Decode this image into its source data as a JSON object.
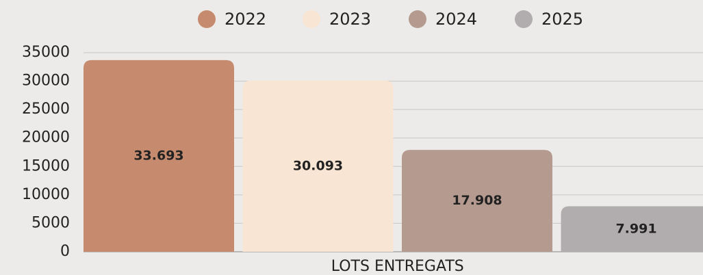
{
  "chart_data": {
    "type": "bar",
    "categories": [
      "LOTS ENTREGATS"
    ],
    "series": [
      {
        "name": "2022",
        "color": "#c68b6e",
        "values": [
          33693
        ],
        "value_labels": [
          "33.693"
        ]
      },
      {
        "name": "2023",
        "color": "#f9e5d3",
        "values": [
          30093
        ],
        "value_labels": [
          "30.093"
        ]
      },
      {
        "name": "2024",
        "color": "#b59a8f",
        "values": [
          17908
        ],
        "value_labels": [
          "17.908"
        ]
      },
      {
        "name": "2025",
        "color": "#b1acae",
        "values": [
          7991
        ],
        "value_labels": [
          "7.991"
        ]
      }
    ],
    "ylim": [
      0,
      35000
    ],
    "yticks": [
      0,
      5000,
      10000,
      15000,
      20000,
      25000,
      30000,
      35000
    ],
    "grid": true,
    "legend": "top"
  }
}
